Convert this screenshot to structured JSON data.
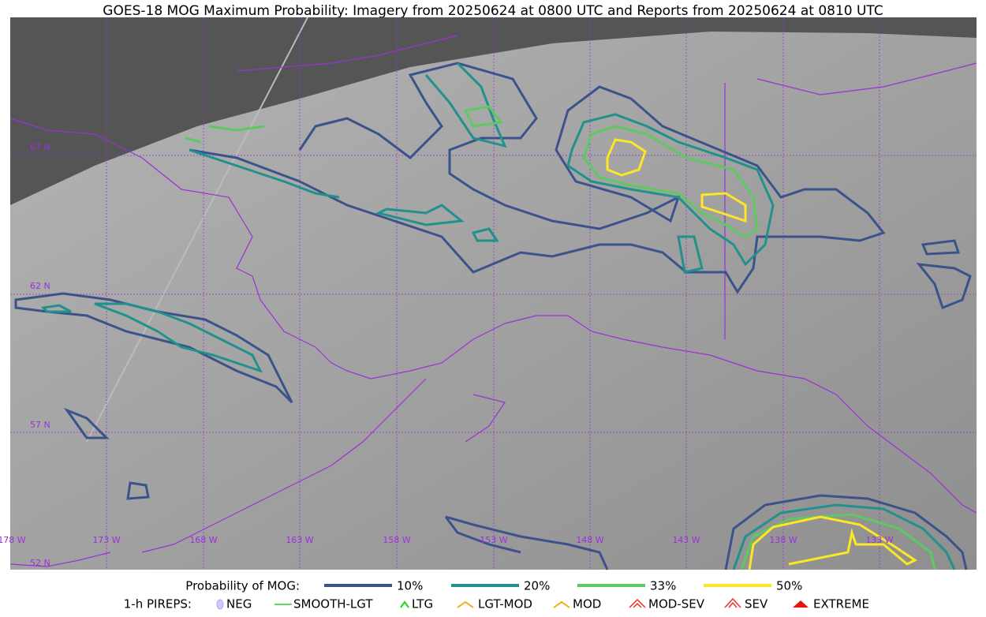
{
  "title": "GOES-18 MOG Maximum Probability: Imagery from 20250624 at 0800 UTC and Reports from 20250624 at 0810 UTC",
  "map": {
    "lat_labels": [
      "67 N",
      "62 N",
      "57 N",
      "52 N"
    ],
    "lon_labels": [
      "178 W",
      "173 W",
      "168 W",
      "163 W",
      "158 W",
      "153 W",
      "148 W",
      "143 W",
      "138 W",
      "133 W"
    ]
  },
  "legend": {
    "probability": {
      "label": "Probability of MOG:",
      "items": [
        {
          "label": "10%",
          "color": "#3b528b"
        },
        {
          "label": "20%",
          "color": "#21918c"
        },
        {
          "label": "33%",
          "color": "#5ec962"
        },
        {
          "label": "50%",
          "color": "#fde725"
        }
      ]
    },
    "pireps": {
      "label": "1-h PIREPS:",
      "items": [
        "NEG",
        "SMOOTH-LGT",
        "LTG",
        "LGT-MOD",
        "MOD",
        "MOD-SEV",
        "SEV",
        "EXTREME"
      ]
    }
  }
}
